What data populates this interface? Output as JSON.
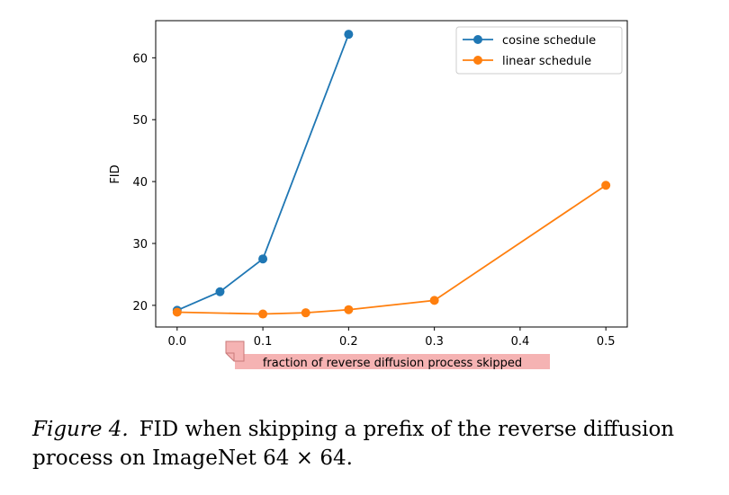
{
  "chart_data": {
    "type": "line",
    "xlabel": "fraction of reverse diffusion process skipped",
    "ylabel": "FID",
    "xlim": [
      -0.025,
      0.525
    ],
    "ylim": [
      16.5,
      66
    ],
    "xticks": [
      0.0,
      0.1,
      0.2,
      0.3,
      0.4,
      0.5
    ],
    "xtick_labels": [
      "0.0",
      "0.1",
      "0.2",
      "0.3",
      "0.4",
      "0.5"
    ],
    "yticks": [
      20,
      30,
      40,
      50,
      60
    ],
    "ytick_labels": [
      "20",
      "30",
      "40",
      "50",
      "60"
    ],
    "grid": false,
    "legend_position": "top-right",
    "series": [
      {
        "name": "cosine schedule",
        "color": "#1f77b4",
        "x": [
          0.0,
          0.05,
          0.1,
          0.2
        ],
        "y": [
          19.2,
          22.2,
          27.5,
          63.8
        ]
      },
      {
        "name": "linear schedule",
        "color": "#ff7f0e",
        "x": [
          0.0,
          0.1,
          0.15,
          0.2,
          0.3,
          0.5
        ],
        "y": [
          18.9,
          18.6,
          18.8,
          19.3,
          20.8,
          39.4
        ]
      }
    ]
  },
  "annotation": {
    "highlight_color": "#f5b3b3"
  },
  "caption": {
    "label": "Figure 4.",
    "text": "FID when skipping a prefix of the reverse diffusion process on ImageNet 64 × 64."
  }
}
